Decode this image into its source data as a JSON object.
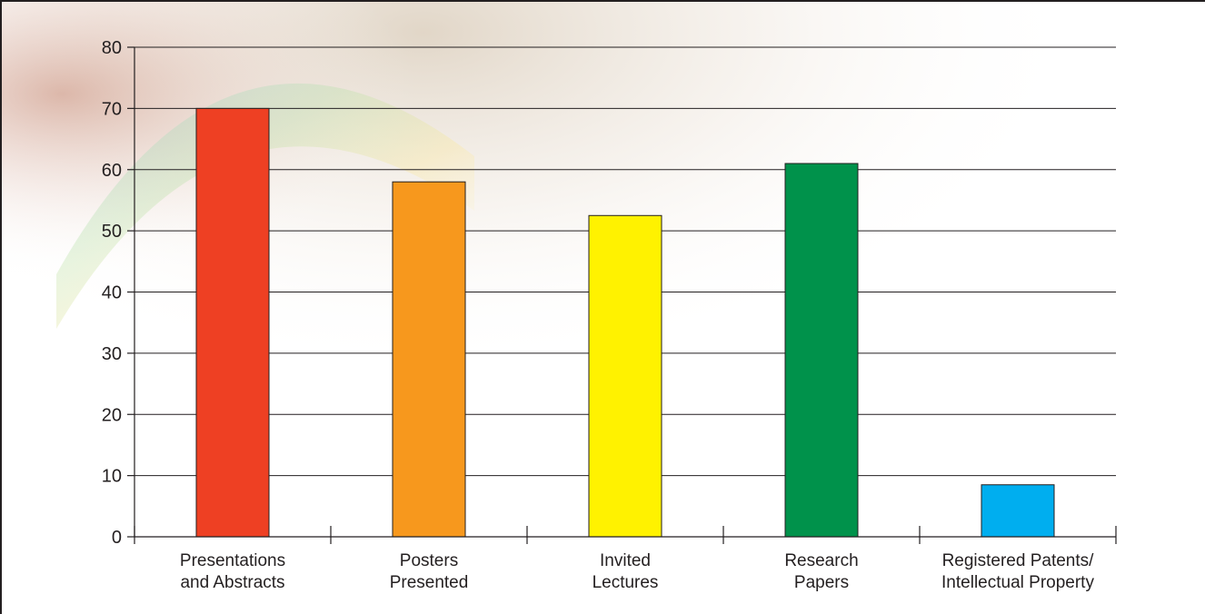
{
  "chart_data": {
    "type": "bar",
    "categories": [
      [
        "Presentations",
        "and Abstracts"
      ],
      [
        "Posters",
        "Presented"
      ],
      [
        "Invited",
        "Lectures"
      ],
      [
        "Research",
        "Papers"
      ],
      [
        "Registered Patents/",
        "Intellectual Property"
      ]
    ],
    "values": [
      70,
      58,
      52.5,
      61,
      8.5
    ],
    "colors": [
      "#ee4023",
      "#f7981d",
      "#fff200",
      "#00924b",
      "#00aeef"
    ],
    "ylim": [
      0,
      80
    ],
    "yticks": [
      0,
      10,
      20,
      30,
      40,
      50,
      60,
      70,
      80
    ],
    "grid": true,
    "title": "",
    "xlabel": "",
    "ylabel": ""
  }
}
